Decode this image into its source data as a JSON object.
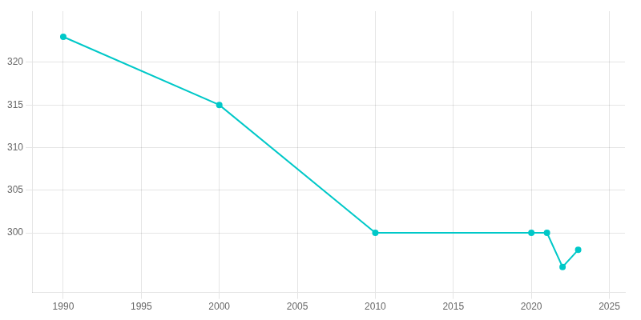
{
  "chart_data": {
    "type": "line",
    "x": [
      1990,
      2000,
      2010,
      2020,
      2021,
      2022,
      2023
    ],
    "values": [
      323,
      315,
      300,
      300,
      300,
      296,
      298
    ],
    "color": "#00C8C8",
    "marker": "circle",
    "xlim": [
      1988,
      2026
    ],
    "ylim": [
      293,
      326
    ],
    "xticks": [
      1990,
      1995,
      2000,
      2005,
      2010,
      2015,
      2020,
      2025
    ],
    "yticks": [
      300,
      305,
      310,
      315,
      320
    ],
    "grid": true
  }
}
